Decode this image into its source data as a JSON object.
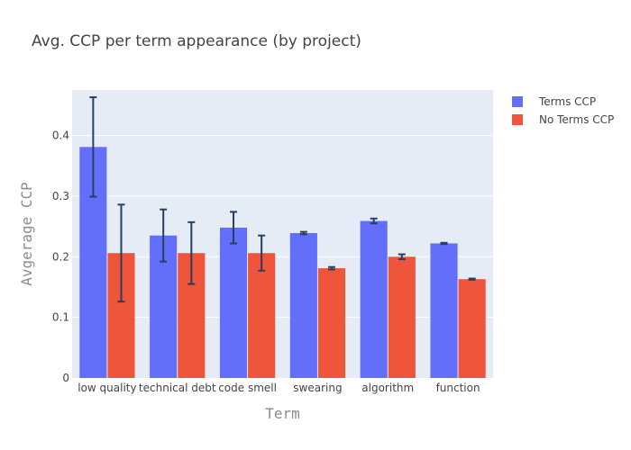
{
  "chart_data": {
    "type": "bar",
    "title": "Avg. CCP per term appearance (by project)",
    "xlabel": "Term",
    "ylabel": "Avgerage CCP",
    "categories": [
      "low quality",
      "technical debt",
      "code smell",
      "swearing",
      "algorithm",
      "function"
    ],
    "ylim": [
      0,
      0.475
    ],
    "yticks": [
      0,
      0.1,
      0.2,
      0.3,
      0.4
    ],
    "ytick_labels": [
      "0",
      "0.1",
      "0.2",
      "0.3",
      "0.4"
    ],
    "grid": true,
    "legend_position": "top-right",
    "series": [
      {
        "name": "Terms CCP",
        "color": "#636efa",
        "values": [
          0.381,
          0.235,
          0.248,
          0.239,
          0.259,
          0.222
        ],
        "error": [
          0.082,
          0.043,
          0.026,
          0.002,
          0.004,
          0.001
        ]
      },
      {
        "name": "No Terms CCP",
        "color": "#ef553b",
        "values": [
          0.206,
          0.206,
          0.206,
          0.181,
          0.2,
          0.163
        ],
        "error": [
          0.08,
          0.051,
          0.029,
          0.002,
          0.004,
          0.001
        ]
      }
    ],
    "plot_background": "#e5ecf6",
    "error_bar_color": "#2a3f5f"
  }
}
